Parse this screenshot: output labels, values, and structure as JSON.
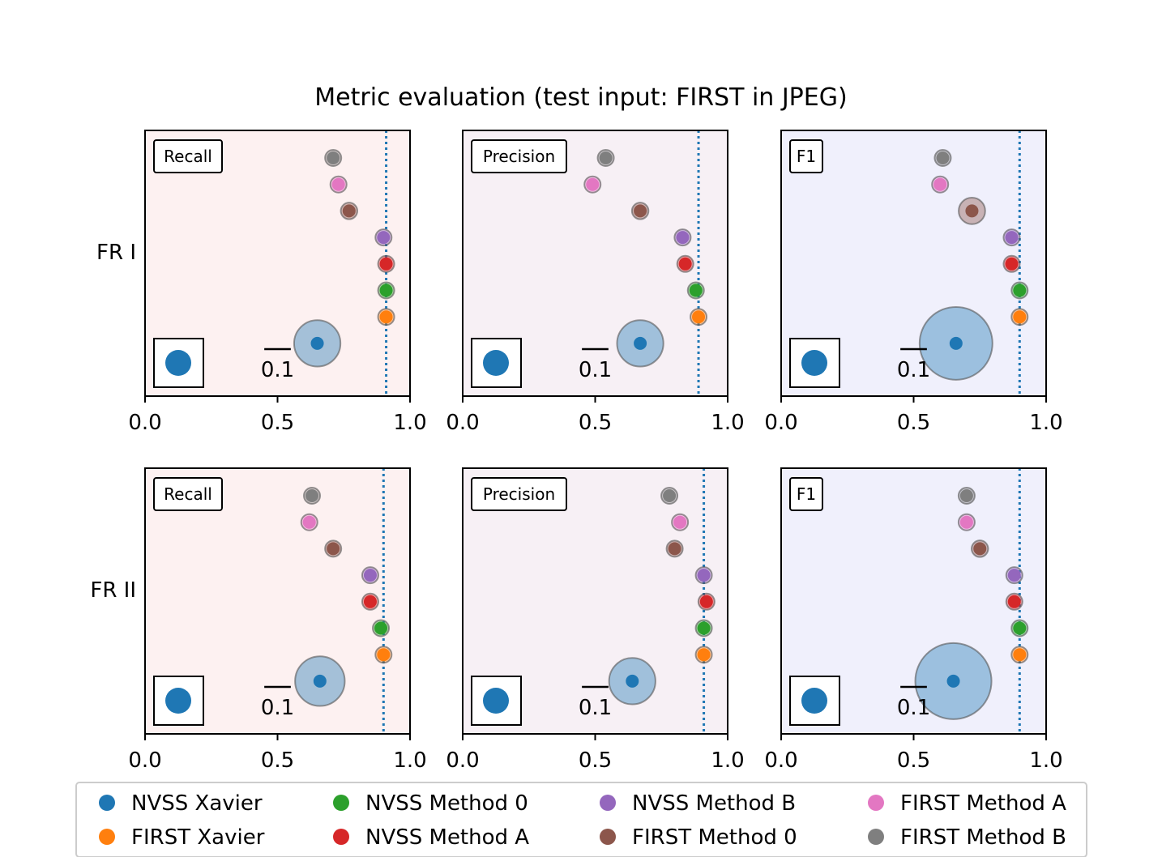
{
  "chart_data": {
    "type": "scatter",
    "title": "Metric evaluation (test input: FIRST in JPEG)",
    "row_labels": [
      "FR I",
      "FR II"
    ],
    "xlim": [
      0,
      1
    ],
    "x_ticks": [
      "0.0",
      "0.5",
      "1.0"
    ],
    "scale_bar_label": "0.1",
    "series": [
      {
        "name": "NVSS Xavier",
        "color": "#1f77b4"
      },
      {
        "name": "FIRST Xavier",
        "color": "#ff7f0e"
      },
      {
        "name": "NVSS Method 0",
        "color": "#2ca02c"
      },
      {
        "name": "NVSS Method A",
        "color": "#d62728"
      },
      {
        "name": "NVSS Method B",
        "color": "#9467bd"
      },
      {
        "name": "FIRST Method 0",
        "color": "#8c564b"
      },
      {
        "name": "FIRST Method A",
        "color": "#e377c2"
      },
      {
        "name": "FIRST Method B",
        "color": "#7f7f7f"
      }
    ],
    "panels": [
      {
        "row": 0,
        "col": 0,
        "metric": "Recall",
        "bg": "#fdf1f1",
        "ref_line": 0.91,
        "values": [
          0.65,
          0.91,
          0.91,
          0.91,
          0.9,
          0.77,
          0.73,
          0.71
        ],
        "spread": [
          0.14,
          0.015,
          0.015,
          0.018,
          0.016,
          0.05,
          0.03,
          0.03
        ]
      },
      {
        "row": 0,
        "col": 1,
        "metric": "Precision",
        "bg": "#f7f0f5",
        "ref_line": 0.89,
        "values": [
          0.67,
          0.89,
          0.88,
          0.84,
          0.83,
          0.67,
          0.49,
          0.54
        ],
        "spread": [
          0.14,
          0.015,
          0.015,
          0.018,
          0.018,
          0.05,
          0.015,
          0.015
        ]
      },
      {
        "row": 0,
        "col": 2,
        "metric": "F1",
        "bg": "#f0f0fc",
        "ref_line": 0.9,
        "values": [
          0.66,
          0.9,
          0.9,
          0.87,
          0.87,
          0.72,
          0.6,
          0.61
        ],
        "spread": [
          0.22,
          0.018,
          0.015,
          0.02,
          0.022,
          0.08,
          0.04,
          0.03
        ]
      },
      {
        "row": 1,
        "col": 0,
        "metric": "Recall",
        "bg": "#fdf1f1",
        "ref_line": 0.9,
        "values": [
          0.66,
          0.9,
          0.89,
          0.85,
          0.85,
          0.71,
          0.62,
          0.63
        ],
        "spread": [
          0.15,
          0.015,
          0.015,
          0.015,
          0.015,
          0.03,
          0.015,
          0.015
        ]
      },
      {
        "row": 1,
        "col": 1,
        "metric": "Precision",
        "bg": "#f7f0f5",
        "ref_line": 0.91,
        "values": [
          0.64,
          0.91,
          0.91,
          0.92,
          0.91,
          0.8,
          0.82,
          0.78
        ],
        "spread": [
          0.14,
          0.02,
          0.015,
          0.015,
          0.018,
          0.03,
          0.015,
          0.015
        ]
      },
      {
        "row": 1,
        "col": 2,
        "metric": "F1",
        "bg": "#f0f0fc",
        "ref_line": 0.9,
        "values": [
          0.65,
          0.9,
          0.9,
          0.88,
          0.88,
          0.75,
          0.7,
          0.7
        ],
        "spread": [
          0.23,
          0.022,
          0.015,
          0.015,
          0.025,
          0.05,
          0.015,
          0.015
        ]
      }
    ]
  }
}
